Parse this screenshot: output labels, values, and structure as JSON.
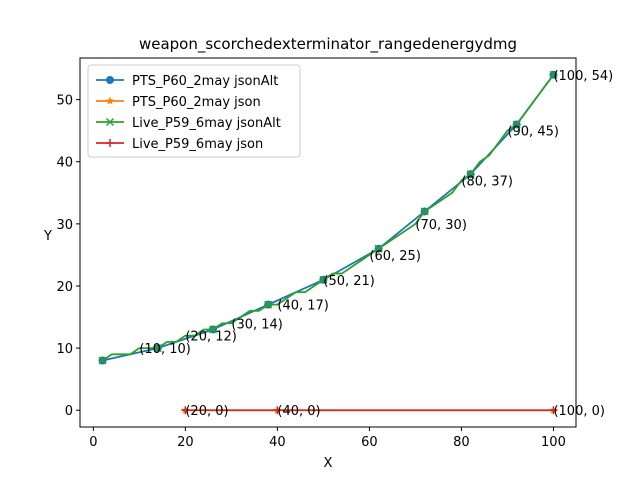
{
  "chart_data": {
    "type": "line",
    "title": "weapon_scorchedexterminator_rangedenergydmg",
    "xlabel": "X",
    "ylabel": "Y",
    "xlim": [
      -2.9,
      104.9
    ],
    "ylim": [
      -2.7,
      56.7
    ],
    "xticks": [
      0,
      20,
      40,
      60,
      80,
      100
    ],
    "yticks": [
      0,
      10,
      20,
      30,
      40,
      50
    ],
    "legend_position": "top-left",
    "series": [
      {
        "name": "PTS_P60_2may jsonAlt",
        "color": "#1f77b4",
        "marker": "circle",
        "x": [
          2,
          14,
          26,
          38,
          50,
          62,
          72,
          82,
          92,
          100
        ],
        "y": [
          8,
          10,
          13,
          17,
          21,
          26,
          32,
          38,
          46,
          54
        ]
      },
      {
        "name": "PTS_P60_2may json",
        "color": "#ff7f0e",
        "marker": "star",
        "x": [
          20,
          40,
          100
        ],
        "y": [
          0,
          0,
          0
        ]
      },
      {
        "name": "Live_P59_6may jsonAlt",
        "color": "#2ca02c",
        "marker": "x",
        "x": [
          2,
          4,
          6,
          8,
          10,
          12,
          14,
          16,
          18,
          20,
          22,
          24,
          26,
          28,
          30,
          32,
          34,
          36,
          38,
          40,
          42,
          44,
          46,
          48,
          50,
          52,
          54,
          56,
          58,
          60,
          62,
          64,
          66,
          68,
          70,
          72,
          74,
          76,
          78,
          80,
          82,
          84,
          86,
          88,
          90,
          92,
          94,
          96,
          98,
          100
        ],
        "y": [
          8,
          9,
          9,
          9,
          10,
          10,
          10,
          11,
          11,
          12,
          12,
          13,
          13,
          14,
          14,
          15,
          16,
          16,
          17,
          17,
          18,
          19,
          19,
          20,
          21,
          22,
          22,
          23,
          24,
          25,
          26,
          27,
          28,
          29,
          30,
          32,
          33,
          34,
          35,
          37,
          38,
          40,
          41,
          43,
          45,
          46,
          48,
          50,
          52,
          54
        ],
        "marker_x": [
          2,
          14,
          26,
          38,
          50,
          62,
          72,
          82,
          92,
          100
        ],
        "marker_y": [
          8,
          10,
          13,
          17,
          21,
          26,
          32,
          38,
          46,
          54
        ]
      },
      {
        "name": "Live_P59_6may json",
        "color": "#d62728",
        "marker": "plus",
        "x": [
          20,
          40,
          100
        ],
        "y": [
          0,
          0,
          0
        ]
      }
    ],
    "annotations": [
      {
        "text": "(10, 10)",
        "x": 10,
        "y": 10
      },
      {
        "text": "(20, 12)",
        "x": 20,
        "y": 12
      },
      {
        "text": "(30, 14)",
        "x": 30,
        "y": 14
      },
      {
        "text": "(40, 17)",
        "x": 40,
        "y": 17
      },
      {
        "text": "(50, 21)",
        "x": 50,
        "y": 21
      },
      {
        "text": "(60, 25)",
        "x": 60,
        "y": 25
      },
      {
        "text": "(70, 30)",
        "x": 70,
        "y": 30
      },
      {
        "text": "(80, 37)",
        "x": 80,
        "y": 37
      },
      {
        "text": "(90, 45)",
        "x": 90,
        "y": 45
      },
      {
        "text": "(100, 54)",
        "x": 100,
        "y": 54
      },
      {
        "text": "(20, 0)",
        "x": 20,
        "y": 0
      },
      {
        "text": "(40, 0)",
        "x": 40,
        "y": 0
      },
      {
        "text": "(100, 0)",
        "x": 100,
        "y": 0
      }
    ]
  }
}
